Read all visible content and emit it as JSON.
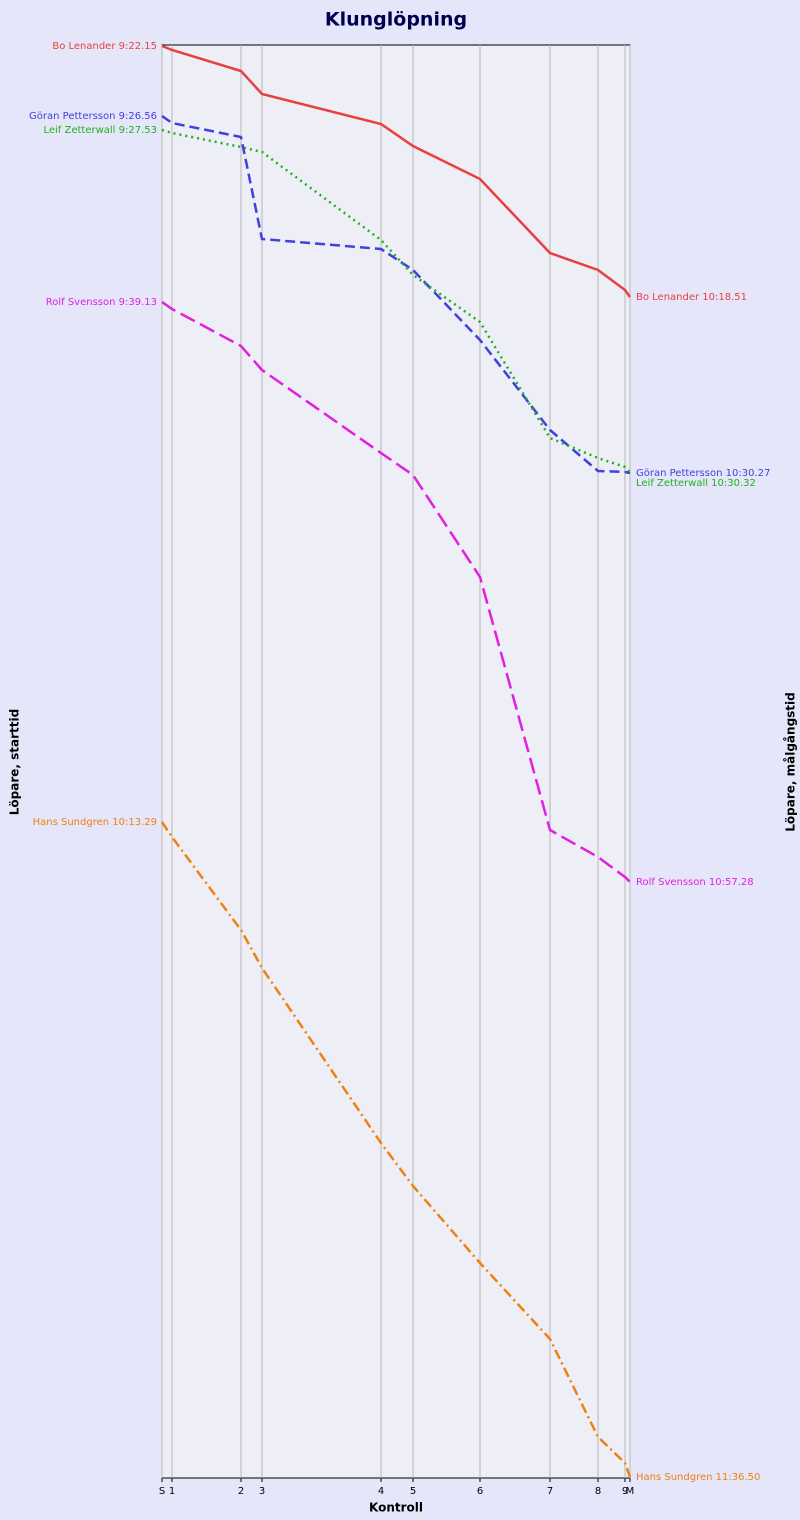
{
  "chart_data": {
    "type": "line",
    "title": "Klunglöpning",
    "x_label": "Kontroll",
    "y_label": "Löpare, starttid",
    "y2_label": "Löpare, målgångstid",
    "x": [
      0,
      10,
      79,
      100,
      219,
      251,
      318,
      388,
      436,
      463,
      468
    ],
    "xlim": [
      0,
      468
    ],
    "xticks": [
      {
        "value": 0,
        "label": "S"
      },
      {
        "value": 10,
        "label": "1"
      },
      {
        "value": 79,
        "label": "2"
      },
      {
        "value": 100,
        "label": "3"
      },
      {
        "value": 219,
        "label": "4"
      },
      {
        "value": 251,
        "label": "5"
      },
      {
        "value": 318,
        "label": "6"
      },
      {
        "value": 388,
        "label": "7"
      },
      {
        "value": 436,
        "label": "8"
      },
      {
        "value": 463,
        "label": "9"
      },
      {
        "value": 468,
        "label": "M"
      }
    ],
    "ylim": [
      0,
      1433
    ],
    "y_inverted": true,
    "grid": true,
    "series": [
      {
        "name": "Bo Lenander",
        "color": "#e84040",
        "line_style": "solid",
        "start_label": "Bo Lenander 9:22.15",
        "end_label": "Bo Lenander 10:18.51",
        "values": [
          1,
          5,
          26,
          49,
          79,
          101,
          134,
          208,
          225,
          245,
          252
        ]
      },
      {
        "name": "Göran Pettersson",
        "color": "#4040e0",
        "line_style": "dashed",
        "start_label": "Göran Pettersson 9:26.56",
        "end_label": "Göran Pettersson 10:30.27",
        "values": [
          71,
          78,
          92,
          194,
          204,
          225,
          295,
          385,
          426,
          427,
          428
        ]
      },
      {
        "name": "Leif Zetterwall",
        "color": "#20b020",
        "line_style": "dotted",
        "start_label": "Leif Zetterwall 9:27.53",
        "end_label": "Leif Zetterwall 10:30.32",
        "values": [
          85,
          88,
          102,
          107,
          195,
          230,
          277,
          393,
          413,
          422,
          428
        ]
      },
      {
        "name": "Rolf Svensson",
        "color": "#e020e0",
        "line_style": "long-dashed",
        "start_label": "Rolf Svensson 9:39.13",
        "end_label": "Rolf Svensson 10:57.28",
        "values": [
          257,
          264,
          301,
          325,
          408,
          430,
          532,
          785,
          812,
          832,
          837
        ]
      },
      {
        "name": "Hans Sundgren",
        "color": "#f08010",
        "line_style": "dash-dot",
        "start_label": "Hans Sundgren 10:13.29",
        "end_label": "Hans Sundgren 11:36.50",
        "values": [
          777,
          792,
          885,
          923,
          1098,
          1141,
          1218,
          1294,
          1392,
          1418,
          1432
        ]
      }
    ]
  }
}
